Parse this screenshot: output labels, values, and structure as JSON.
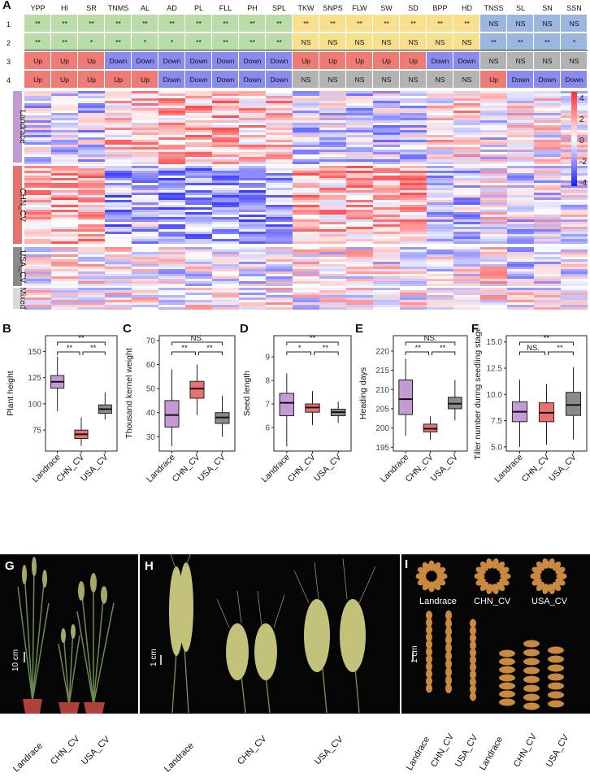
{
  "panel_labels": {
    "A": "A",
    "B": "B",
    "C": "C",
    "D": "D",
    "E": "E",
    "F": "F",
    "G": "G",
    "H": "H",
    "I": "I"
  },
  "heatmap": {
    "traits": [
      "YPP",
      "HI",
      "SR",
      "TNMS",
      "AL",
      "AD",
      "PL",
      "FLL",
      "PH",
      "SPL",
      "TKW",
      "SNPS",
      "FLW",
      "SW",
      "SD",
      "BPP",
      "HD",
      "TNSS",
      "SL",
      "SN",
      "SSN"
    ],
    "trait_group": [
      "g",
      "g",
      "g",
      "g",
      "g",
      "g",
      "g",
      "g",
      "g",
      "g",
      "y",
      "y",
      "y",
      "y",
      "y",
      "y",
      "y",
      "b",
      "b",
      "b",
      "b"
    ],
    "row_labels": [
      "1",
      "2",
      "3",
      "4"
    ],
    "row1": [
      "**",
      "**",
      "**",
      "**",
      "**",
      "**",
      "**",
      "**",
      "**",
      "**",
      "**",
      "**",
      "**",
      "**",
      "**",
      "**",
      "**",
      "NS",
      "NS",
      "NS",
      "NS"
    ],
    "row2": [
      "**",
      "**",
      "*",
      "**",
      "*",
      "*",
      "**",
      "**",
      "**",
      "**",
      "NS",
      "NS",
      "NS",
      "NS",
      "NS",
      "NS",
      "NS",
      "**",
      "**",
      "**",
      "*"
    ],
    "row3": [
      "Up",
      "Up",
      "Up",
      "Down",
      "Down",
      "Down",
      "Down",
      "Down",
      "Down",
      "Down",
      "Up",
      "Up",
      "Up",
      "Up",
      "Up",
      "Down",
      "Down",
      "NS",
      "NS",
      "NS",
      "NS"
    ],
    "row4": [
      "Up",
      "Up",
      "Up",
      "Up",
      "Up",
      "Down",
      "Down",
      "Down",
      "Down",
      "Down",
      "NS",
      "NS",
      "NS",
      "NS",
      "NS",
      "NS",
      "NS",
      "Up",
      "Down",
      "Down",
      "Down"
    ],
    "group_labels": [
      "Landrace",
      "CHN_CV",
      "USA_CV",
      "Mixed"
    ],
    "scale_ticks": [
      "4",
      "2",
      "0",
      "-2",
      "-4"
    ],
    "colors": {
      "green": "#b9dca8",
      "yellow": "#f8df8e",
      "blue": "#9ab7df",
      "up": "#ef7b77",
      "down": "#8a8bef",
      "ns": "#b3b3b3",
      "landrace": "#c49bd4",
      "chn": "#e8716f",
      "usa": "#8a8a8a",
      "mixed": "#d9d9d9"
    }
  },
  "chart_data": [
    {
      "type": "box",
      "panel": "B",
      "ylabel": "Plant height",
      "categories": [
        "Landrace",
        "CHN_CV",
        "USA_CV"
      ],
      "ylim": [
        55,
        165
      ],
      "yticks": [
        75,
        100,
        125,
        150
      ],
      "boxes": [
        {
          "q1": 115,
          "median": 121,
          "q3": 127,
          "low": 93,
          "high": 145
        },
        {
          "q1": 67,
          "median": 71,
          "q3": 75,
          "low": 60,
          "high": 87
        },
        {
          "q1": 91,
          "median": 95,
          "q3": 99,
          "low": 85,
          "high": 111
        }
      ],
      "sig": [
        "**",
        "**",
        "**"
      ]
    },
    {
      "type": "box",
      "panel": "C",
      "ylabel": "Thousand kernel weight",
      "categories": [
        "Landrace",
        "CHN_CV",
        "USA_CV"
      ],
      "ylim": [
        24,
        72
      ],
      "yticks": [
        30,
        40,
        50,
        60,
        70
      ],
      "boxes": [
        {
          "q1": 34,
          "median": 39,
          "q3": 45,
          "low": 26,
          "high": 58
        },
        {
          "q1": 46,
          "median": 50,
          "q3": 53,
          "low": 39,
          "high": 60
        },
        {
          "q1": 35.5,
          "median": 38,
          "q3": 40,
          "low": 30,
          "high": 47
        }
      ],
      "sig": [
        "NS.",
        "**",
        "**"
      ]
    },
    {
      "type": "box",
      "panel": "D",
      "ylabel": "Seed length",
      "categories": [
        "Landrace",
        "CHN_CV",
        "USA_CV"
      ],
      "ylim": [
        5.0,
        9.9
      ],
      "yticks": [
        6,
        7,
        8,
        9
      ],
      "boxes": [
        {
          "q1": 6.5,
          "median": 7.05,
          "q3": 7.45,
          "low": 5.2,
          "high": 8.3
        },
        {
          "q1": 6.65,
          "median": 6.85,
          "q3": 7.0,
          "low": 6.1,
          "high": 7.55
        },
        {
          "q1": 6.5,
          "median": 6.65,
          "q3": 6.78,
          "low": 6.2,
          "high": 7.1
        }
      ],
      "sig": [
        "**",
        "*",
        "**"
      ]
    },
    {
      "type": "box",
      "panel": "E",
      "ylabel": "Heading days",
      "categories": [
        "Landrace",
        "CHN_CV",
        "USA_CV"
      ],
      "ylim": [
        194,
        224
      ],
      "yticks": [
        195,
        200,
        205,
        210,
        215,
        220
      ],
      "boxes": [
        {
          "q1": 203.5,
          "median": 207.5,
          "q3": 212.5,
          "low": 198,
          "high": 218
        },
        {
          "q1": 199,
          "median": 199.8,
          "q3": 201,
          "low": 197,
          "high": 203
        },
        {
          "q1": 205,
          "median": 206.3,
          "q3": 208,
          "low": 202,
          "high": 212.5
        }
      ],
      "sig": [
        "NS.",
        "**",
        "**"
      ]
    },
    {
      "type": "box",
      "panel": "F",
      "ylabel": "Tiller number during seedling stage",
      "categories": [
        "Landrace",
        "CHN_CV",
        "USA_CV"
      ],
      "ylim": [
        4.6,
        15.6
      ],
      "yticks": [
        5.0,
        7.5,
        10.0,
        12.5,
        15.0
      ],
      "boxes": [
        {
          "q1": 7.4,
          "median": 8.35,
          "q3": 9.3,
          "low": 5.0,
          "high": 11.4
        },
        {
          "q1": 7.4,
          "median": 8.25,
          "q3": 9.2,
          "low": 5.2,
          "high": 11.0
        },
        {
          "q1": 8.0,
          "median": 9.0,
          "q3": 10.2,
          "low": 5.7,
          "high": 12.6
        }
      ],
      "sig": [
        "**",
        "NS.",
        "**"
      ]
    }
  ],
  "photos": {
    "G": {
      "scale": "10 cm",
      "labels": [
        "Landrace",
        "CHN_CV",
        "USA_CV"
      ]
    },
    "H": {
      "scale": "1 cm",
      "labels": [
        "Landrace",
        "CHN_CV",
        "USA_CV"
      ]
    },
    "I": {
      "scale": "1 cm",
      "ring_labels": [
        "Landrace",
        "CHN_CV",
        "USA_CV"
      ],
      "labels": [
        "Landrace",
        "CHN_CV",
        "USA_CV",
        "Landrace",
        "CHN_CV",
        "USA_CV"
      ]
    }
  }
}
